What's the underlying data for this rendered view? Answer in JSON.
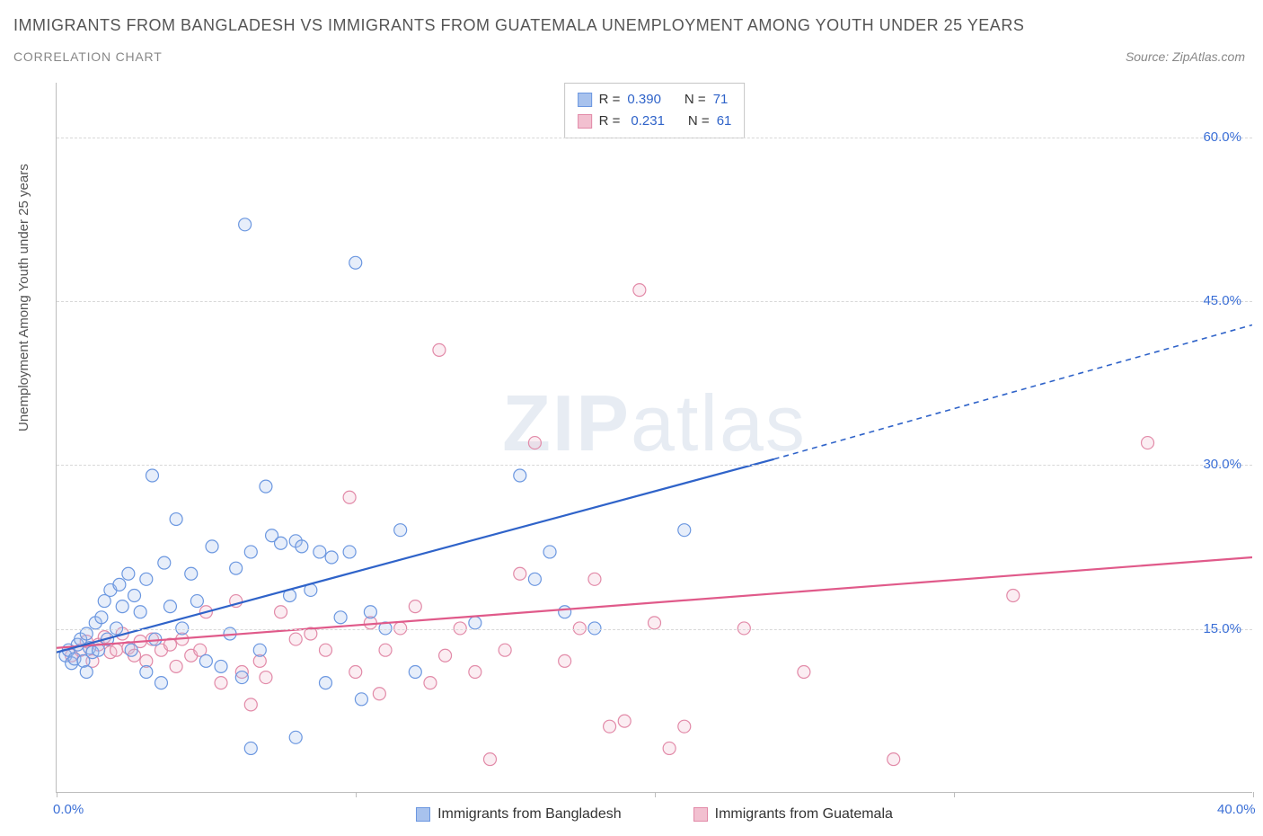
{
  "header": {
    "title": "IMMIGRANTS FROM BANGLADESH VS IMMIGRANTS FROM GUATEMALA UNEMPLOYMENT AMONG YOUTH UNDER 25 YEARS",
    "subtitle": "CORRELATION CHART",
    "source": "Source: ZipAtlas.com"
  },
  "chart": {
    "type": "scatter",
    "ylabel": "Unemployment Among Youth under 25 years",
    "xlim": [
      0,
      40
    ],
    "ylim": [
      0,
      65
    ],
    "x_ticks": [
      0,
      10,
      20,
      30,
      40
    ],
    "x_tick_labels": [
      "0.0%",
      "",
      "",
      "",
      "40.0%"
    ],
    "y_grid": [
      15,
      30,
      45,
      60
    ],
    "y_tick_labels": [
      "15.0%",
      "30.0%",
      "45.0%",
      "60.0%"
    ],
    "background_color": "#ffffff",
    "grid_color": "#d8d8d8",
    "axis_color": "#bdbdbd",
    "marker_radius": 7,
    "marker_stroke_width": 1.2,
    "marker_fill_opacity": 0.28,
    "trend_line_width": 2.2,
    "watermark_text_1": "ZIP",
    "watermark_text_2": "atlas",
    "series": {
      "bangladesh": {
        "label": "Immigrants from Bangladesh",
        "color_stroke": "#6b97e0",
        "color_fill": "#a8c2ed",
        "trend_color": "#2f63c9",
        "r_value": "0.390",
        "n_value": "71",
        "trend_start": [
          0,
          12.8
        ],
        "trend_solid_end": [
          24,
          30.5
        ],
        "trend_dash_end": [
          40,
          42.8
        ],
        "points": [
          [
            0.3,
            12.5
          ],
          [
            0.4,
            13.0
          ],
          [
            0.5,
            11.8
          ],
          [
            0.6,
            12.2
          ],
          [
            0.7,
            13.5
          ],
          [
            0.8,
            14.0
          ],
          [
            0.9,
            12.0
          ],
          [
            1.0,
            11.0
          ],
          [
            1.0,
            14.5
          ],
          [
            1.1,
            13.2
          ],
          [
            1.2,
            12.8
          ],
          [
            1.3,
            15.5
          ],
          [
            1.4,
            13.0
          ],
          [
            1.5,
            16.0
          ],
          [
            1.6,
            17.5
          ],
          [
            1.7,
            14.0
          ],
          [
            1.8,
            18.5
          ],
          [
            2.0,
            15.0
          ],
          [
            2.1,
            19.0
          ],
          [
            2.2,
            17.0
          ],
          [
            2.4,
            20.0
          ],
          [
            2.5,
            13.0
          ],
          [
            2.6,
            18.0
          ],
          [
            2.8,
            16.5
          ],
          [
            3.0,
            11.0
          ],
          [
            3.0,
            19.5
          ],
          [
            3.2,
            29.0
          ],
          [
            3.3,
            14.0
          ],
          [
            3.5,
            10.0
          ],
          [
            3.6,
            21.0
          ],
          [
            3.8,
            17.0
          ],
          [
            4.0,
            25.0
          ],
          [
            4.2,
            15.0
          ],
          [
            4.5,
            20.0
          ],
          [
            4.7,
            17.5
          ],
          [
            5.0,
            12.0
          ],
          [
            5.2,
            22.5
          ],
          [
            5.5,
            11.5
          ],
          [
            5.8,
            14.5
          ],
          [
            6.0,
            20.5
          ],
          [
            6.2,
            10.5
          ],
          [
            6.3,
            52.0
          ],
          [
            6.5,
            22.0
          ],
          [
            6.8,
            13.0
          ],
          [
            7.0,
            28.0
          ],
          [
            7.2,
            23.5
          ],
          [
            7.5,
            22.8
          ],
          [
            7.8,
            18.0
          ],
          [
            8.0,
            23.0
          ],
          [
            8.2,
            22.5
          ],
          [
            8.5,
            18.5
          ],
          [
            8.8,
            22.0
          ],
          [
            9.0,
            10.0
          ],
          [
            9.2,
            21.5
          ],
          [
            9.5,
            16.0
          ],
          [
            9.8,
            22.0
          ],
          [
            10.0,
            48.5
          ],
          [
            10.2,
            8.5
          ],
          [
            10.5,
            16.5
          ],
          [
            11.0,
            15.0
          ],
          [
            11.5,
            24.0
          ],
          [
            12.0,
            11.0
          ],
          [
            14.0,
            15.5
          ],
          [
            15.5,
            29.0
          ],
          [
            16.0,
            19.5
          ],
          [
            16.5,
            22.0
          ],
          [
            17.0,
            16.5
          ],
          [
            18.0,
            15.0
          ],
          [
            21.0,
            24.0
          ],
          [
            6.5,
            4.0
          ],
          [
            8.0,
            5.0
          ]
        ]
      },
      "guatemala": {
        "label": "Immigrants from Guatemala",
        "color_stroke": "#e28aa8",
        "color_fill": "#f2c0d0",
        "trend_color": "#e05a8a",
        "r_value": "0.231",
        "n_value": "61",
        "trend_start": [
          0,
          13.2
        ],
        "trend_solid_end": [
          40,
          21.5
        ],
        "points": [
          [
            0.5,
            12.5
          ],
          [
            0.8,
            13.0
          ],
          [
            1.0,
            13.8
          ],
          [
            1.2,
            12.0
          ],
          [
            1.4,
            13.5
          ],
          [
            1.6,
            14.2
          ],
          [
            1.8,
            12.8
          ],
          [
            2.0,
            13.0
          ],
          [
            2.2,
            14.5
          ],
          [
            2.4,
            13.2
          ],
          [
            2.6,
            12.5
          ],
          [
            2.8,
            13.8
          ],
          [
            3.0,
            12.0
          ],
          [
            3.2,
            14.0
          ],
          [
            3.5,
            13.0
          ],
          [
            3.8,
            13.5
          ],
          [
            4.0,
            11.5
          ],
          [
            4.2,
            14.0
          ],
          [
            4.5,
            12.5
          ],
          [
            4.8,
            13.0
          ],
          [
            5.0,
            16.5
          ],
          [
            5.5,
            10.0
          ],
          [
            6.0,
            17.5
          ],
          [
            6.2,
            11.0
          ],
          [
            6.5,
            8.0
          ],
          [
            6.8,
            12.0
          ],
          [
            7.0,
            10.5
          ],
          [
            7.5,
            16.5
          ],
          [
            8.0,
            14.0
          ],
          [
            8.5,
            14.5
          ],
          [
            9.0,
            13.0
          ],
          [
            9.8,
            27.0
          ],
          [
            10.0,
            11.0
          ],
          [
            10.5,
            15.5
          ],
          [
            10.8,
            9.0
          ],
          [
            11.0,
            13.0
          ],
          [
            11.5,
            15.0
          ],
          [
            12.0,
            17.0
          ],
          [
            12.5,
            10.0
          ],
          [
            12.8,
            40.5
          ],
          [
            13.0,
            12.5
          ],
          [
            13.5,
            15.0
          ],
          [
            14.0,
            11.0
          ],
          [
            14.5,
            3.0
          ],
          [
            15.0,
            13.0
          ],
          [
            15.5,
            20.0
          ],
          [
            16.0,
            32.0
          ],
          [
            17.0,
            12.0
          ],
          [
            17.5,
            15.0
          ],
          [
            18.0,
            19.5
          ],
          [
            18.5,
            6.0
          ],
          [
            19.0,
            6.5
          ],
          [
            19.5,
            46.0
          ],
          [
            20.0,
            15.5
          ],
          [
            21.0,
            6.0
          ],
          [
            23.0,
            15.0
          ],
          [
            25.0,
            11.0
          ],
          [
            28.0,
            3.0
          ],
          [
            32.0,
            18.0
          ],
          [
            36.5,
            32.0
          ],
          [
            20.5,
            4.0
          ]
        ]
      }
    },
    "legend_top": {
      "r_label": "R =",
      "n_label": "N ="
    }
  }
}
